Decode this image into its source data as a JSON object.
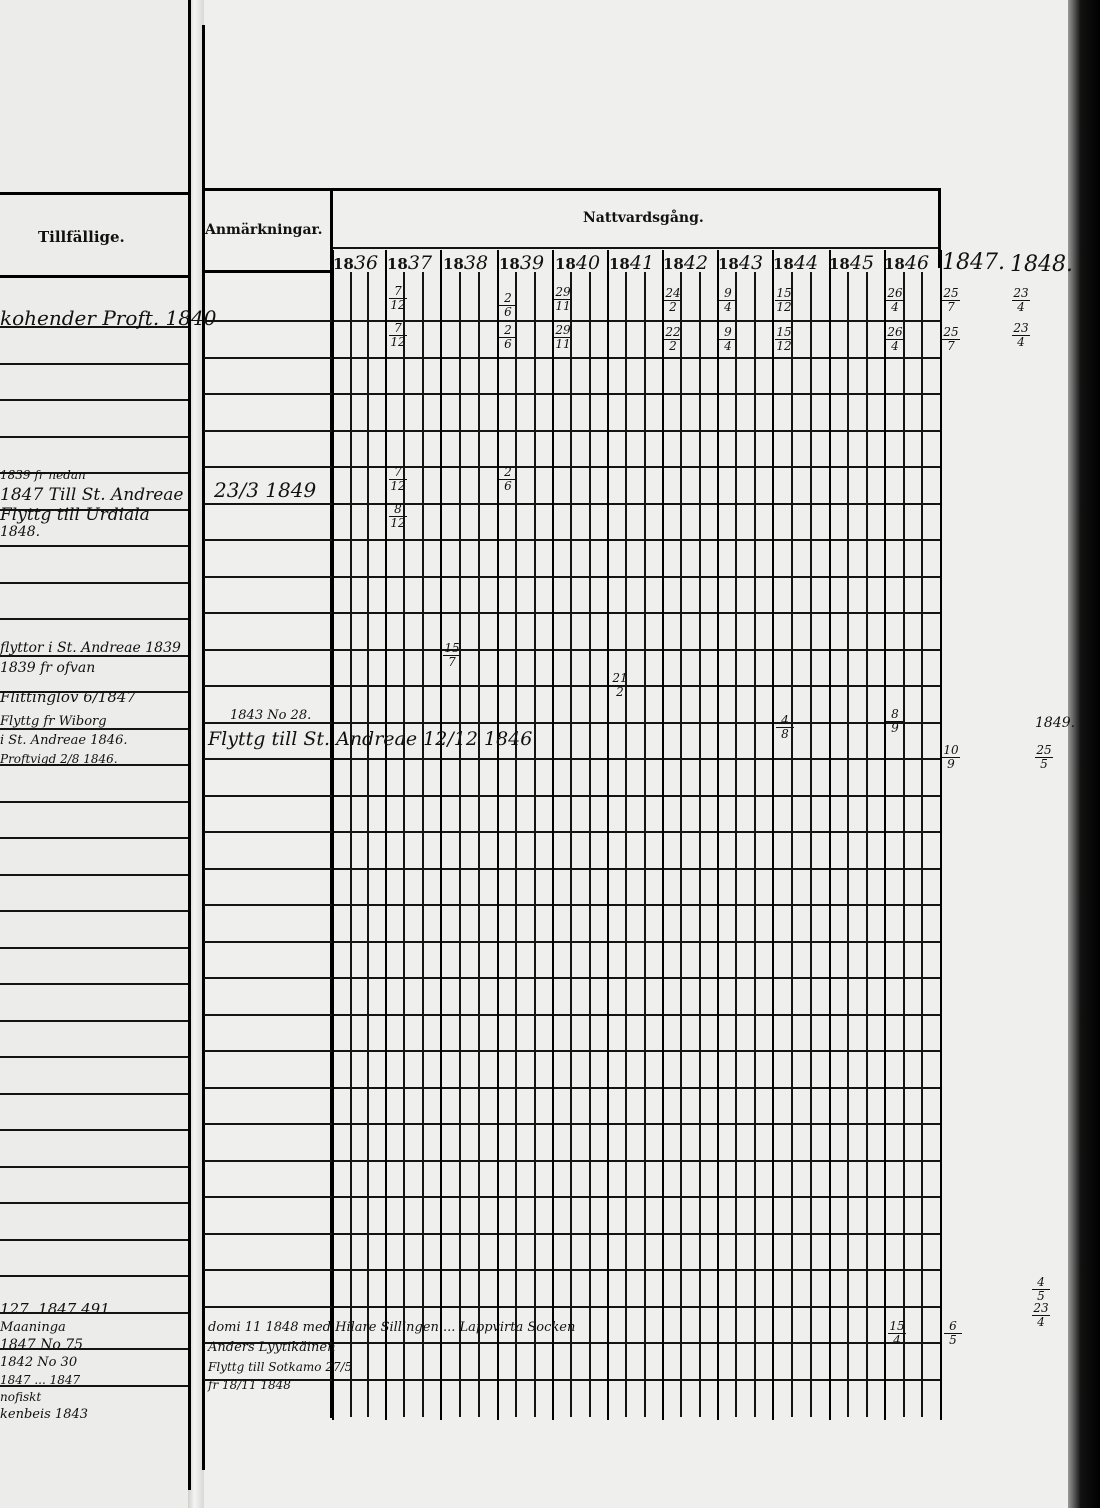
{
  "headers": {
    "tillfallige": "Tillfällige.",
    "anmarkningar": "Anmärkningar.",
    "nattvardsgang": "Nattvardsgång."
  },
  "years": [
    {
      "prefix": "18",
      "suffix": "36"
    },
    {
      "prefix": "18",
      "suffix": "37"
    },
    {
      "prefix": "18",
      "suffix": "38"
    },
    {
      "prefix": "18",
      "suffix": "39"
    },
    {
      "prefix": "18",
      "suffix": "40"
    },
    {
      "prefix": "18",
      "suffix": "41"
    },
    {
      "prefix": "18",
      "suffix": "42"
    },
    {
      "prefix": "18",
      "suffix": "43"
    },
    {
      "prefix": "18",
      "suffix": "44"
    },
    {
      "prefix": "18",
      "suffix": "45"
    },
    {
      "prefix": "18",
      "suffix": "46"
    }
  ],
  "extra_years": [
    "1847.",
    "1848.",
    "1849."
  ],
  "left_notes": [
    "kohender Proft. 1840",
    "1839 fr nedan",
    "1847 Till St. Andreae",
    "Flyttg till Urdiala",
    "1848.",
    "flyttor i St. Andreae 1839",
    "1839 fr ofvan",
    "Flittinglov 6/1847",
    "Flyttg fr Wiborg",
    "i St. Andreae 1846.",
    "Proftvigd 2/8 1846.",
    "127. 1847 491",
    "Maaninga",
    "1847 No 75",
    "1842 No 30",
    "1847 ... 1847",
    "nofiskt",
    "kenbeis 1843"
  ],
  "remark_notes": [
    "23/3 1849",
    "1843 No 28.",
    "Flyttg till St. Andreae 12/12 1846",
    "domi 11 1848 med Hilare Sillingen ... Lappvirta Socken",
    "Anders Lyytikäinen",
    "Flyttg till Sotkamo 27/5",
    "fr 18/11 1848"
  ],
  "communion_dates": [
    {
      "num": "7",
      "den": "12"
    },
    {
      "num": "2",
      "den": "6"
    },
    {
      "num": "29",
      "den": "11"
    },
    {
      "num": "24",
      "den": "2"
    },
    {
      "num": "9",
      "den": "4"
    },
    {
      "num": "15",
      "den": "12"
    },
    {
      "num": "26",
      "den": "4"
    },
    {
      "num": "25",
      "den": "7"
    },
    {
      "num": "23",
      "den": "4"
    },
    {
      "num": "7",
      "den": "12"
    },
    {
      "num": "2",
      "den": "6"
    },
    {
      "num": "29",
      "den": "11"
    },
    {
      "num": "22",
      "den": "2"
    },
    {
      "num": "9",
      "den": "4"
    },
    {
      "num": "15",
      "den": "12"
    },
    {
      "num": "26",
      "den": "4"
    },
    {
      "num": "25",
      "den": "7"
    },
    {
      "num": "23",
      "den": "4"
    },
    {
      "num": "7",
      "den": "12"
    },
    {
      "num": "2",
      "den": "6"
    },
    {
      "num": "8",
      "den": "12"
    },
    {
      "num": "15",
      "den": "7"
    },
    {
      "num": "21",
      "den": "2"
    },
    {
      "num": "4",
      "den": "8"
    },
    {
      "num": "8",
      "den": "9"
    },
    {
      "num": "10",
      "den": "9"
    },
    {
      "num": "25",
      "den": "5"
    },
    {
      "num": "4",
      "den": "5"
    },
    {
      "num": "23",
      "den": "4"
    },
    {
      "num": "15",
      "den": "4"
    },
    {
      "num": "6",
      "den": "5"
    }
  ]
}
